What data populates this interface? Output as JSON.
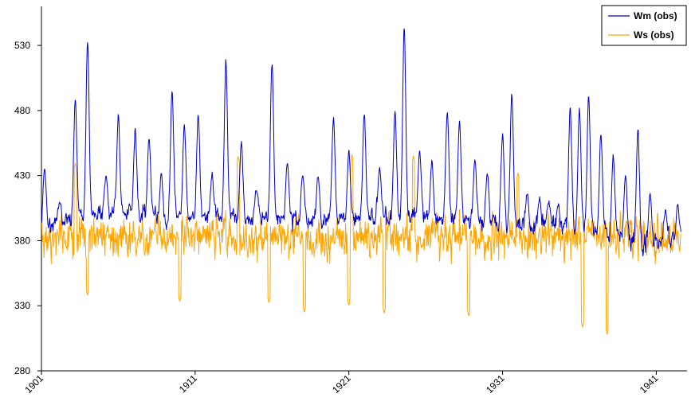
{
  "chart_data": {
    "type": "line",
    "title": "",
    "xlabel": "",
    "ylabel": "",
    "xlim": [
      1901,
      1943
    ],
    "ylim": [
      280,
      560
    ],
    "y_ticks": [
      "280",
      "330",
      "380",
      "430",
      "480",
      "530"
    ],
    "x_ticks": [
      "1901",
      "1911",
      "1921",
      "1931",
      "1941"
    ],
    "grid": false,
    "legend": {
      "position": "top-right"
    },
    "series": [
      {
        "name": "Wm (obs)",
        "color": "#0000cc",
        "peaks": [
          [
            1901.2,
            435
          ],
          [
            1902.2,
            410
          ],
          [
            1903.2,
            490
          ],
          [
            1904.0,
            535
          ],
          [
            1905.2,
            430
          ],
          [
            1906.0,
            475
          ],
          [
            1907.1,
            465
          ],
          [
            1908.0,
            460
          ],
          [
            1908.8,
            430
          ],
          [
            1909.5,
            495
          ],
          [
            1910.3,
            470
          ],
          [
            1911.2,
            475
          ],
          [
            1912.1,
            430
          ],
          [
            1913.0,
            520
          ],
          [
            1914.0,
            455
          ],
          [
            1915.0,
            420
          ],
          [
            1916.0,
            518
          ],
          [
            1917.0,
            440
          ],
          [
            1918.0,
            432
          ],
          [
            1919.0,
            430
          ],
          [
            1920.0,
            475
          ],
          [
            1921.0,
            448
          ],
          [
            1922.0,
            478
          ],
          [
            1923.0,
            438
          ],
          [
            1924.0,
            478
          ],
          [
            1924.6,
            544
          ],
          [
            1925.6,
            450
          ],
          [
            1926.4,
            440
          ],
          [
            1927.4,
            480
          ],
          [
            1928.2,
            470
          ],
          [
            1929.2,
            442
          ],
          [
            1930.0,
            432
          ],
          [
            1931.0,
            460
          ],
          [
            1931.6,
            492
          ],
          [
            1932.6,
            415
          ],
          [
            1933.4,
            412
          ],
          [
            1934.0,
            410
          ],
          [
            1934.6,
            410
          ],
          [
            1935.4,
            482
          ],
          [
            1936.0,
            482
          ],
          [
            1936.6,
            490
          ],
          [
            1937.4,
            462
          ],
          [
            1938.2,
            445
          ],
          [
            1939.0,
            432
          ],
          [
            1939.8,
            465
          ],
          [
            1940.6,
            418
          ],
          [
            1941.6,
            405
          ],
          [
            1942.4,
            410
          ]
        ],
        "base": [
          [
            1901,
            392
          ],
          [
            1905,
            400
          ],
          [
            1910,
            398
          ],
          [
            1915,
            396
          ],
          [
            1920,
            396
          ],
          [
            1925,
            398
          ],
          [
            1930,
            394
          ],
          [
            1935,
            390
          ],
          [
            1938,
            384
          ],
          [
            1940,
            378
          ],
          [
            1942,
            380
          ]
        ]
      },
      {
        "name": "Ws (obs)",
        "color": "#ffa500",
        "range": {
          "mean": 383,
          "min": 308,
          "max": 446,
          "lows": [
            [
              1904.0,
              338
            ],
            [
              1910.0,
              333
            ],
            [
              1915.8,
              332
            ],
            [
              1918.1,
              325
            ],
            [
              1921.0,
              330
            ],
            [
              1923.3,
              324
            ],
            [
              1928.8,
              322
            ],
            [
              1936.2,
              313
            ],
            [
              1937.8,
              308
            ]
          ],
          "highs": [
            [
              1903.2,
              440
            ],
            [
              1913.8,
              445
            ],
            [
              1921.2,
              446
            ],
            [
              1925.2,
              445
            ],
            [
              1932.0,
              432
            ]
          ]
        }
      }
    ]
  }
}
